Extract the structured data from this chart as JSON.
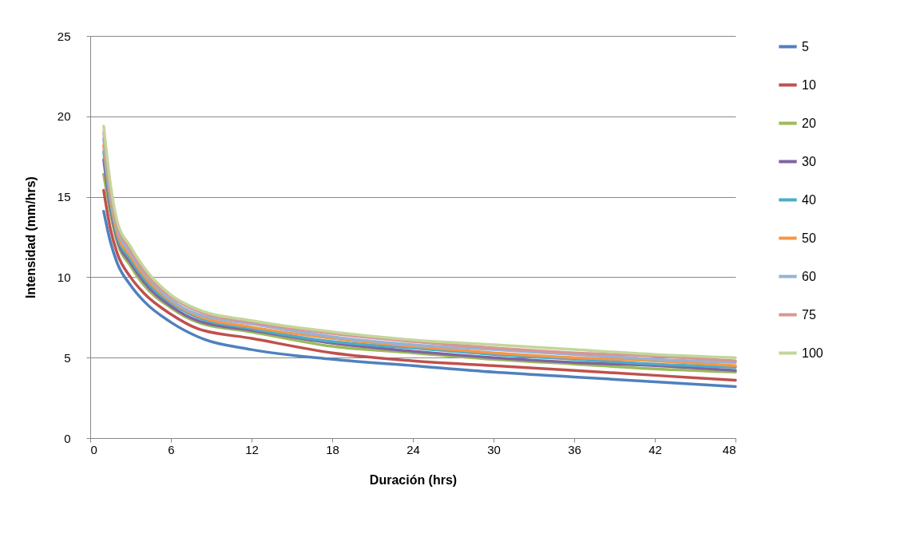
{
  "chart_data": {
    "type": "line",
    "xlabel": "Duración (hrs)",
    "ylabel": "Intensidad (mm/hrs)",
    "x": [
      1,
      1.5,
      2,
      3,
      4,
      6,
      8,
      12,
      18,
      24,
      30,
      36,
      42,
      48
    ],
    "xlim": [
      0,
      48
    ],
    "xticks": [
      0,
      6,
      12,
      18,
      24,
      30,
      36,
      42,
      48
    ],
    "ylim": [
      0,
      25
    ],
    "yticks": [
      0,
      5,
      10,
      15,
      20,
      25
    ],
    "grid": "y",
    "legend": "right",
    "marker": "none",
    "line_style": "solid",
    "series": [
      {
        "name": "5",
        "color": "#4f81bd",
        "values": [
          14.1,
          12.2,
          10.9,
          9.5,
          8.5,
          7.2,
          6.3,
          5.5,
          4.9,
          4.5,
          4.1,
          3.8,
          3.5,
          3.2
        ]
      },
      {
        "name": "10",
        "color": "#c0504d",
        "values": [
          15.4,
          13.0,
          11.5,
          10.0,
          9.0,
          7.7,
          6.8,
          6.2,
          5.3,
          4.8,
          4.5,
          4.2,
          3.9,
          3.6
        ]
      },
      {
        "name": "20",
        "color": "#9bbb59",
        "values": [
          16.4,
          14.0,
          12.2,
          10.7,
          9.5,
          8.1,
          7.2,
          6.6,
          5.7,
          5.3,
          4.9,
          4.6,
          4.3,
          4.1
        ]
      },
      {
        "name": "30",
        "color": "#8064a2",
        "values": [
          17.3,
          14.3,
          12.4,
          10.9,
          9.7,
          8.2,
          7.3,
          6.7,
          5.9,
          5.4,
          5.0,
          4.7,
          4.5,
          4.2
        ]
      },
      {
        "name": "40",
        "color": "#4bacc6",
        "values": [
          17.8,
          14.6,
          12.6,
          11.1,
          9.9,
          8.4,
          7.5,
          6.8,
          6.0,
          5.6,
          5.2,
          4.9,
          4.6,
          4.4
        ]
      },
      {
        "name": "50",
        "color": "#f79646",
        "values": [
          18.2,
          14.9,
          12.8,
          11.3,
          10.1,
          8.5,
          7.6,
          6.9,
          6.2,
          5.7,
          5.3,
          5.0,
          4.8,
          4.5
        ]
      },
      {
        "name": "60",
        "color": "#95b3d7",
        "values": [
          18.6,
          15.2,
          13.1,
          11.5,
          10.3,
          8.6,
          7.7,
          7.1,
          6.3,
          5.8,
          5.5,
          5.2,
          4.9,
          4.7
        ]
      },
      {
        "name": "75",
        "color": "#d99694",
        "values": [
          19.0,
          15.5,
          13.3,
          11.7,
          10.4,
          8.8,
          7.9,
          7.2,
          6.5,
          6.0,
          5.6,
          5.3,
          5.1,
          4.8
        ]
      },
      {
        "name": "100",
        "color": "#c3d69b",
        "values": [
          19.4,
          15.8,
          13.5,
          11.9,
          10.6,
          8.9,
          8.0,
          7.3,
          6.6,
          6.1,
          5.8,
          5.5,
          5.2,
          5.0
        ]
      }
    ]
  }
}
